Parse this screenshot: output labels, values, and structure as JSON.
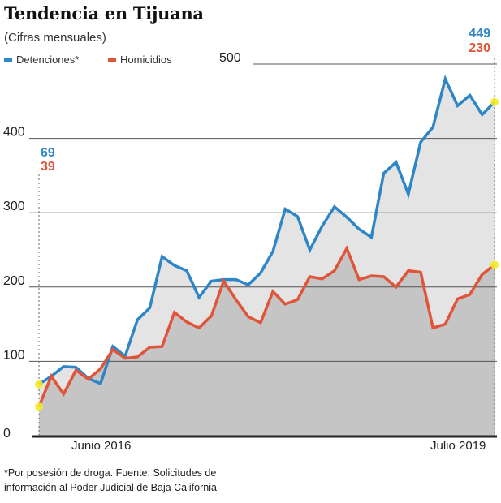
{
  "chart_data": {
    "type": "area",
    "title": "Tendencia en Tijuana",
    "subtitle": "(Cifras mensuales)",
    "x_labels": [
      "Junio 2016",
      "Julio 2019"
    ],
    "x_start": "2016-06",
    "x_end": "2019-07",
    "ylim": [
      0,
      500
    ],
    "yticks": [
      "0",
      "100",
      "200",
      "300",
      "400",
      "500"
    ],
    "grid": true,
    "legend_position": "top-left",
    "series": [
      {
        "name": "Detenciones*",
        "color": "#2f86c6",
        "fill": "#e4e4e4",
        "values": [
          69,
          80,
          93,
          92,
          77,
          70,
          120,
          107,
          156,
          172,
          241,
          229,
          222,
          186,
          208,
          210,
          210,
          203,
          219,
          248,
          305,
          295,
          250,
          282,
          308,
          294,
          278,
          267,
          353,
          368,
          325,
          395,
          415,
          480,
          444,
          458,
          432,
          449
        ]
      },
      {
        "name": "Homicidios",
        "color": "#e0553a",
        "fill": "#c5c5c5",
        "values": [
          39,
          80,
          56,
          88,
          76,
          90,
          116,
          104,
          106,
          119,
          120,
          166,
          153,
          145,
          161,
          208,
          183,
          160,
          152,
          194,
          177,
          183,
          214,
          211,
          222,
          252,
          210,
          215,
          214,
          200,
          222,
          220,
          145,
          150,
          184,
          190,
          217,
          230
        ]
      }
    ],
    "annotations": {
      "start": {
        "detenciones": "69",
        "homicidios": "39"
      },
      "end": {
        "detenciones": "449",
        "homicidios": "230"
      }
    },
    "footnote": [
      "*Por posesión de droga. Fuente: Solicitudes de",
      "información al Poder Judicial de Baja California"
    ]
  }
}
